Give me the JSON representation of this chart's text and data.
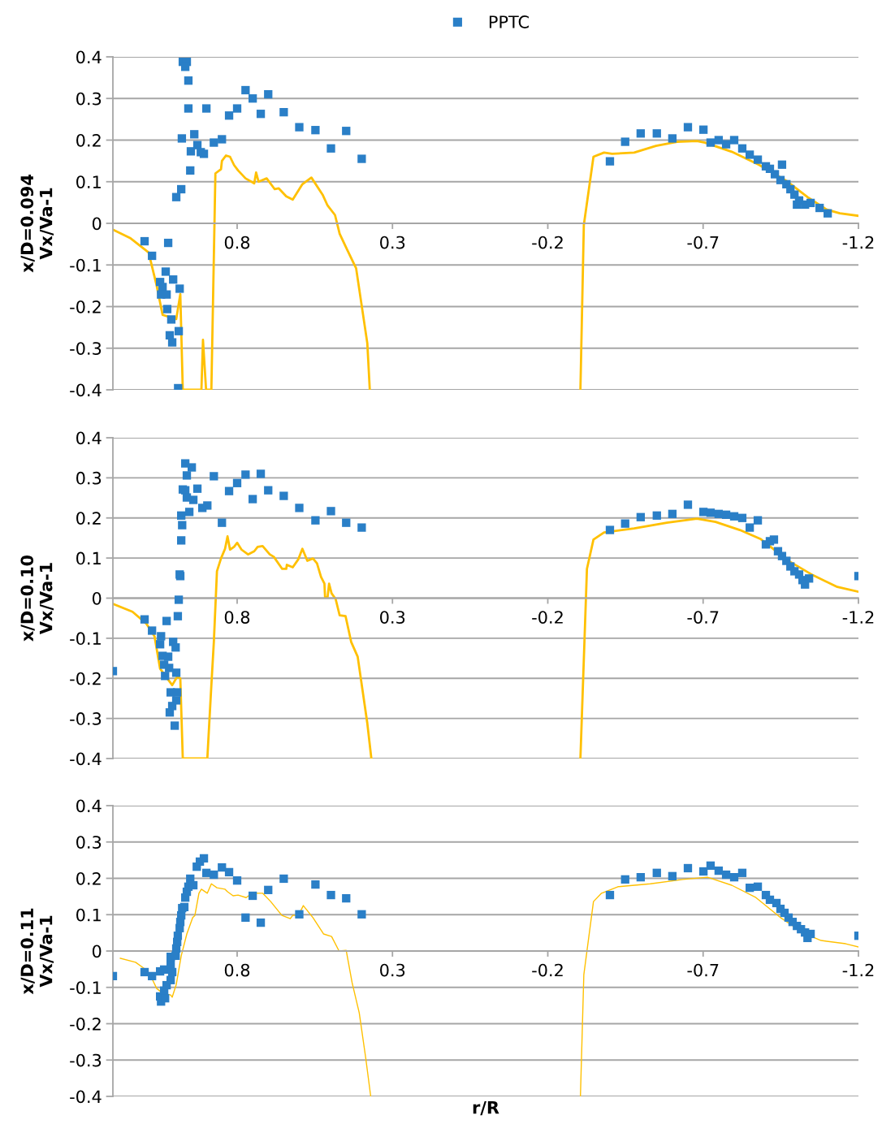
{
  "chart_data": [
    {
      "type": "line",
      "ylabel": "x/D=0.094\nVx/Va-1",
      "xlim": [
        1.2,
        -1.2
      ],
      "xticks": [
        0.8,
        0.3,
        -0.2,
        -0.7,
        -1.2
      ],
      "ylim": [
        -0.4,
        0.4
      ],
      "yticks": [
        -0.4,
        -0.3,
        -0.2,
        -0.1,
        0,
        0.1,
        0.2,
        0.3,
        0.4
      ],
      "grid": "y",
      "legend": "top",
      "series": [
        {
          "color": "#ffc000",
          "marker": "none",
          "x": [
            1.2,
            1.145,
            1.085,
            1.059,
            1.04,
            0.996,
            0.983,
            0.975,
            0.915,
            0.91,
            0.9,
            0.883,
            0.87,
            0.852,
            0.849,
            0.836,
            0.823,
            0.81,
            0.797,
            0.773,
            0.745,
            0.739,
            0.731,
            0.705,
            0.679,
            0.666,
            0.642,
            0.621,
            0.59,
            0.561,
            0.525,
            0.509,
            0.485,
            0.47,
            0.446,
            0.417,
            0.381,
            0.373,
            0.0,
            -0.305,
            -0.316,
            -0.347,
            -0.381,
            -0.407,
            -0.478,
            -0.548,
            -0.616,
            -0.68,
            -0.706,
            -0.792,
            -0.879,
            -0.968,
            -1.036,
            -1.098,
            -1.14,
            -1.2
          ],
          "values": [
            -0.015,
            -0.035,
            -0.07,
            -0.15,
            -0.22,
            -0.23,
            -0.17,
            -0.4,
            -0.4,
            -0.28,
            -0.4,
            -0.4,
            0.12,
            0.13,
            0.15,
            0.163,
            0.16,
            0.14,
            0.127,
            0.108,
            0.096,
            0.122,
            0.1,
            0.108,
            0.082,
            0.084,
            0.065,
            0.057,
            0.094,
            0.11,
            0.069,
            0.043,
            0.02,
            -0.025,
            -0.063,
            -0.108,
            -0.288,
            -0.4,
            null,
            -0.4,
            -0.004,
            0.16,
            0.17,
            0.167,
            0.17,
            0.186,
            0.196,
            0.198,
            0.194,
            0.172,
            0.141,
            0.102,
            0.063,
            0.033,
            0.024,
            0.018
          ]
        },
        {
          "type": "scatter",
          "name": "PPTC",
          "color": "#2a7fc7",
          "marker": "square",
          "x": [
            0.975,
            0.962,
            0.967,
            0.957,
            0.957,
            0.899,
            0.773,
            0.75,
            0.7,
            0.8,
            0.826,
            0.724,
            0.65,
            0.6,
            0.548,
            0.449,
            0.498,
            0.399,
            0.978,
            0.938,
            0.875,
            0.849,
            0.928,
            0.949,
            0.917,
            0.907,
            0.951,
            0.98,
            0.996,
            1.098,
            1.022,
            1.074,
            1.03,
            1.006,
            1.048,
            1.04,
            0.985,
            1.045,
            1.027,
            1.025,
            1.012,
            0.988,
            1.017,
            1.009,
            0.99,
            -0.4,
            -0.449,
            -0.499,
            -0.551,
            -0.601,
            -0.651,
            -0.701,
            -0.724,
            -0.75,
            -0.774,
            -0.8,
            -0.826,
            -0.85,
            -0.876,
            -0.902,
            -0.915,
            -0.954,
            -0.931,
            -0.949,
            -0.968,
            -0.981,
            -0.994,
            -1.009,
            -1.028,
            -1.046,
            -1.002,
            -1.075,
            -1.101
          ],
          "values": [
            0.388,
            0.388,
            0.376,
            0.343,
            0.276,
            0.276,
            0.32,
            0.3,
            0.31,
            0.276,
            0.259,
            0.263,
            0.267,
            0.231,
            0.224,
            0.222,
            0.18,
            0.155,
            0.204,
            0.214,
            0.194,
            0.202,
            0.188,
            0.173,
            0.171,
            0.167,
            0.127,
            0.082,
            0.063,
            -0.043,
            -0.047,
            -0.078,
            -0.116,
            -0.135,
            -0.141,
            -0.153,
            -0.157,
            -0.171,
            -0.171,
            -0.206,
            -0.231,
            -0.259,
            -0.269,
            -0.286,
            -0.396,
            0.149,
            0.196,
            0.216,
            0.216,
            0.204,
            0.231,
            0.225,
            0.194,
            0.2,
            0.19,
            0.2,
            0.18,
            0.165,
            0.153,
            0.137,
            0.131,
            0.141,
            0.118,
            0.104,
            0.094,
            0.082,
            0.069,
            0.055,
            0.045,
            0.049,
            0.045,
            0.037,
            0.024
          ]
        }
      ]
    },
    {
      "type": "line",
      "ylabel": "x/D=0.10\nVx/Va-1",
      "xlim": [
        1.2,
        -1.2
      ],
      "xticks": [
        0.8,
        0.3,
        -0.2,
        -0.7,
        -1.2
      ],
      "ylim": [
        -0.4,
        0.4
      ],
      "yticks": [
        -0.4,
        -0.3,
        -0.2,
        -0.1,
        0,
        0.1,
        0.2,
        0.3,
        0.4
      ],
      "grid": "y",
      "series": [
        {
          "color": "#ffc000",
          "marker": "none",
          "x": [
            1.2,
            1.137,
            1.093,
            1.066,
            1.048,
            1.009,
            0.993,
            0.983,
            0.975,
            0.896,
            0.883,
            0.875,
            0.865,
            0.852,
            0.839,
            0.831,
            0.823,
            0.81,
            0.8,
            0.786,
            0.765,
            0.745,
            0.734,
            0.718,
            0.695,
            0.682,
            0.655,
            0.642,
            0.64,
            0.621,
            0.603,
            0.59,
            0.574,
            0.556,
            0.543,
            0.53,
            0.519,
            0.517,
            0.509,
            0.504,
            0.496,
            0.483,
            0.47,
            0.451,
            0.433,
            0.412,
            0.381,
            0.368,
            0.0,
            -0.305,
            -0.326,
            -0.347,
            -0.381,
            -0.478,
            -0.583,
            -0.68,
            -0.74,
            -0.818,
            -0.884,
            -0.975,
            -1.054,
            -1.132,
            -1.2
          ],
          "values": [
            -0.014,
            -0.034,
            -0.063,
            -0.095,
            -0.176,
            -0.217,
            -0.196,
            -0.2,
            -0.4,
            -0.4,
            -0.217,
            -0.109,
            0.067,
            0.099,
            0.123,
            0.154,
            0.121,
            0.128,
            0.138,
            0.121,
            0.109,
            0.117,
            0.128,
            0.13,
            0.109,
            0.103,
            0.073,
            0.073,
            0.083,
            0.077,
            0.097,
            0.123,
            0.093,
            0.099,
            0.087,
            0.053,
            0.036,
            0.002,
            0.002,
            0.036,
            0.012,
            -0.002,
            -0.043,
            -0.045,
            -0.109,
            -0.146,
            -0.312,
            -0.4,
            null,
            -0.4,
            0.073,
            0.146,
            0.164,
            0.174,
            0.188,
            0.198,
            0.19,
            0.17,
            0.148,
            0.093,
            0.057,
            0.028,
            0.016
          ]
        },
        {
          "type": "scatter",
          "color": "#2a7fc7",
          "marker": "square",
          "x": [
            1.2,
            1.098,
            1.027,
            0.991,
            0.988,
            0.983,
            0.985,
            0.98,
            0.977,
            0.98,
            0.954,
            0.967,
            0.975,
            0.962,
            0.967,
            0.946,
            0.928,
            0.941,
            0.962,
            0.912,
            0.896,
            0.875,
            0.849,
            0.826,
            0.8,
            0.773,
            0.75,
            0.724,
            0.7,
            0.65,
            0.6,
            0.548,
            0.498,
            0.449,
            0.399,
            1.074,
            1.045,
            1.006,
            1.048,
            0.998,
            1.04,
            1.022,
            1.035,
            1.019,
            0.996,
            1.032,
            1.014,
            0.993,
            0.996,
            1.009,
            1.017,
            1.001,
            -0.4,
            -0.449,
            -0.499,
            -0.551,
            -0.601,
            -0.651,
            -0.701,
            -0.724,
            -0.75,
            -0.774,
            -0.8,
            -0.826,
            -0.85,
            -0.876,
            -0.902,
            -0.915,
            -0.928,
            -0.941,
            -0.954,
            -0.968,
            -0.981,
            -0.994,
            -1.009,
            -1.02,
            -1.028,
            -1.041,
            -1.2
          ],
          "values": [
            -0.182,
            -0.053,
            -0.057,
            -0.045,
            -0.004,
            0.055,
            0.059,
            0.144,
            0.182,
            0.206,
            0.215,
            0.269,
            0.271,
            0.306,
            0.336,
            0.326,
            0.273,
            0.245,
            0.251,
            0.225,
            0.231,
            0.304,
            0.188,
            0.267,
            0.287,
            0.308,
            0.247,
            0.31,
            0.269,
            0.255,
            0.225,
            0.194,
            0.217,
            0.188,
            0.176,
            -0.081,
            -0.095,
            -0.109,
            -0.115,
            -0.123,
            -0.144,
            -0.146,
            -0.166,
            -0.174,
            -0.186,
            -0.194,
            -0.235,
            -0.235,
            -0.255,
            -0.269,
            -0.285,
            -0.318,
            0.17,
            0.186,
            0.202,
            0.206,
            0.21,
            0.233,
            0.215,
            0.213,
            0.21,
            0.208,
            0.204,
            0.2,
            0.176,
            0.194,
            0.134,
            0.142,
            0.146,
            0.117,
            0.105,
            0.093,
            0.079,
            0.067,
            0.059,
            0.045,
            0.034,
            0.049,
            0.055
          ]
        }
      ]
    },
    {
      "type": "line",
      "ylabel": "x/D=0.11\nVx/Va-1",
      "xlabel": "r/R",
      "xlim": [
        1.2,
        -1.2
      ],
      "xticks": [
        0.8,
        0.3,
        -0.2,
        -0.7,
        -1.2
      ],
      "ylim": [
        -0.4,
        0.4
      ],
      "yticks": [
        -0.4,
        -0.3,
        -0.2,
        -0.1,
        0,
        0.1,
        0.2,
        0.3,
        0.4
      ],
      "grid": "y",
      "series": [
        {
          "color": "#ffc000",
          "marker": "none",
          "x": [
            1.176,
            1.127,
            1.101,
            1.072,
            1.059,
            1.04,
            1.014,
            1.009,
            0.996,
            0.98,
            0.962,
            0.943,
            0.936,
            0.923,
            0.915,
            0.896,
            0.883,
            0.865,
            0.839,
            0.831,
            0.813,
            0.797,
            0.771,
            0.752,
            0.718,
            0.692,
            0.656,
            0.629,
            0.621,
            0.603,
            0.587,
            0.556,
            0.522,
            0.496,
            0.472,
            0.449,
            0.43,
            0.407,
            0.386,
            0.37,
            0.0,
            -0.305,
            -0.316,
            -0.347,
            -0.373,
            -0.426,
            -0.53,
            -0.635,
            -0.714,
            -0.792,
            -0.87,
            -0.949,
            -1.028,
            -1.08,
            -1.159,
            -1.2
          ],
          "values": [
            -0.02,
            -0.031,
            -0.047,
            -0.08,
            -0.103,
            -0.116,
            -0.121,
            -0.127,
            -0.092,
            -0.013,
            0.047,
            0.092,
            0.098,
            0.159,
            0.17,
            0.159,
            0.185,
            0.174,
            0.17,
            0.163,
            0.152,
            0.154,
            0.147,
            0.159,
            0.159,
            0.136,
            0.098,
            0.089,
            0.098,
            0.098,
            0.125,
            0.092,
            0.047,
            0.04,
            0,
            0.002,
            -0.087,
            -0.17,
            -0.295,
            -0.4,
            null,
            -0.4,
            -0.065,
            0.136,
            0.159,
            0.177,
            0.185,
            0.197,
            0.203,
            0.181,
            0.147,
            0.092,
            0.047,
            0.029,
            0.02,
            0.011
          ]
        },
        {
          "type": "scatter",
          "color": "#2a7fc7",
          "marker": "square",
          "x": [
            1.2,
            1.098,
            1.074,
            1.048,
            1.035,
            1.045,
            1.048,
            1.032,
            1.035,
            1.027,
            1.014,
            1.009,
            1.014,
            1.014,
            0.998,
            0.996,
            0.993,
            0.991,
            0.985,
            0.983,
            0.98,
            0.977,
            0.97,
            0.967,
            0.962,
            0.957,
            0.951,
            0.941,
            0.93,
            0.92,
            0.907,
            0.899,
            0.875,
            0.849,
            0.826,
            0.8,
            0.773,
            0.75,
            0.724,
            0.7,
            0.65,
            0.6,
            0.548,
            0.498,
            0.449,
            0.399,
            -0.4,
            -0.449,
            -0.499,
            -0.551,
            -0.601,
            -0.651,
            -0.701,
            -0.724,
            -0.75,
            -0.774,
            -0.8,
            -0.826,
            -0.85,
            -0.876,
            -0.902,
            -0.915,
            -0.936,
            -0.949,
            -0.962,
            -0.975,
            -0.988,
            -1.002,
            -1.015,
            -1.028,
            -1.036,
            -1.046,
            -1.2
          ],
          "values": [
            -0.069,
            -0.058,
            -0.069,
            -0.056,
            -0.051,
            -0.139,
            -0.125,
            -0.13,
            -0.109,
            -0.094,
            -0.08,
            -0.058,
            -0.036,
            -0.016,
            -0.013,
            0.007,
            0.025,
            0.042,
            0.063,
            0.08,
            0.098,
            0.118,
            0.121,
            0.147,
            0.163,
            0.177,
            0.199,
            0.181,
            0.232,
            0.246,
            0.255,
            0.215,
            0.21,
            0.23,
            0.217,
            0.194,
            0.092,
            0.152,
            0.078,
            0.168,
            0.199,
            0.101,
            0.183,
            0.154,
            0.145,
            0.101,
            0.154,
            0.197,
            0.203,
            0.215,
            0.206,
            0.228,
            0.219,
            0.235,
            0.221,
            0.21,
            0.203,
            0.215,
            0.174,
            0.177,
            0.154,
            0.141,
            0.132,
            0.116,
            0.105,
            0.092,
            0.08,
            0.069,
            0.06,
            0.051,
            0.036,
            0.047,
            0.042
          ]
        }
      ]
    }
  ]
}
